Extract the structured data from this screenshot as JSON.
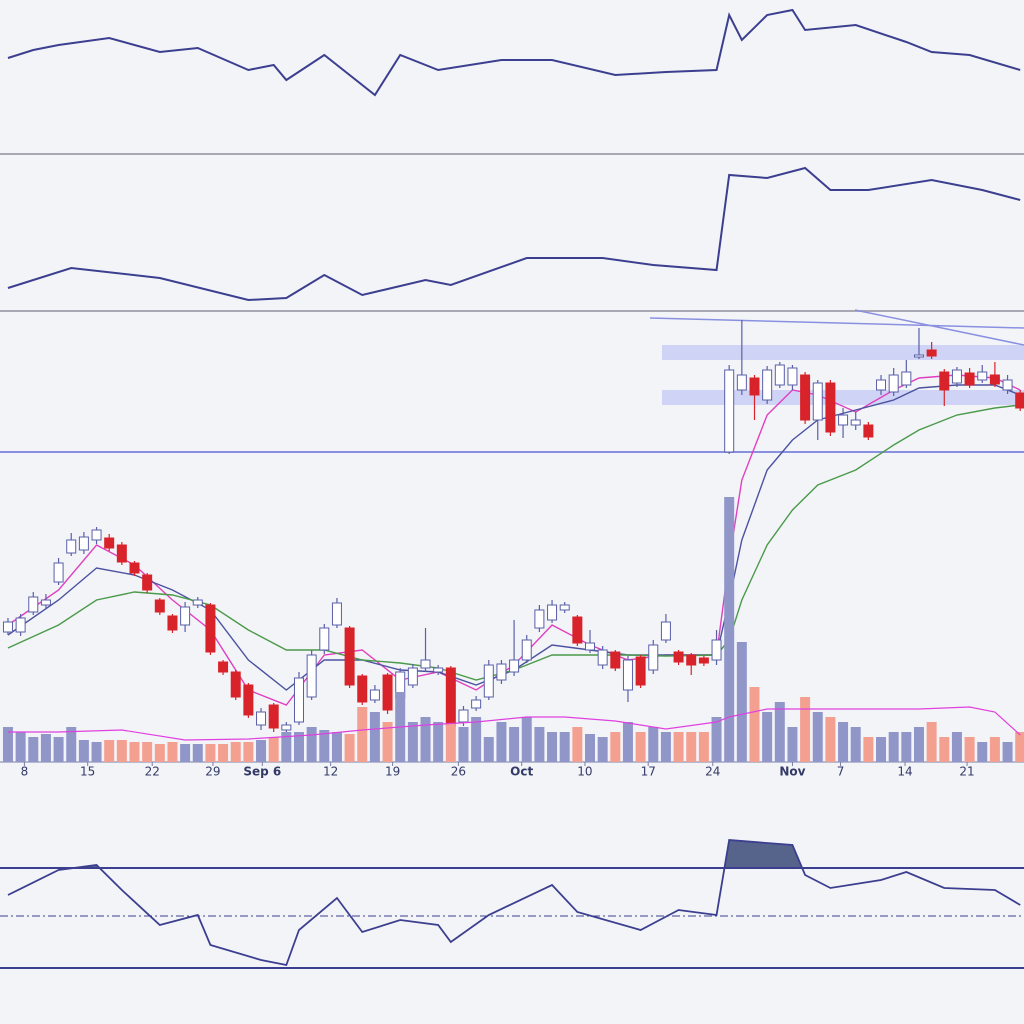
{
  "chart_data": [
    {
      "type": "line",
      "color": "#3c3f8f",
      "xlim": [
        -0.63,
        80.3
      ],
      "ylim": [
        0,
        150
      ],
      "x": [
        0,
        2,
        4,
        8,
        12,
        15,
        19,
        21,
        22,
        25,
        27,
        29,
        31,
        34,
        39,
        43,
        48,
        52,
        56,
        57,
        58,
        60,
        62,
        63,
        67,
        71,
        73,
        76,
        80
      ],
      "values": [
        92,
        100,
        105,
        112,
        98,
        102,
        80,
        85,
        70,
        95,
        75,
        55,
        95,
        80,
        90,
        90,
        75,
        78,
        80,
        135,
        110,
        135,
        140,
        120,
        125,
        108,
        98,
        95,
        80
      ]
    },
    {
      "type": "line",
      "color": "#3c3f8f",
      "xlim": [
        -0.63,
        80.3
      ],
      "ylim": [
        0,
        155
      ],
      "x": [
        0,
        5,
        12,
        19,
        22,
        25,
        28,
        33,
        35,
        41,
        47,
        51,
        56,
        57,
        60,
        63,
        65,
        68,
        73,
        77,
        80
      ],
      "values": [
        22,
        42,
        32,
        10,
        12,
        35,
        15,
        30,
        25,
        52,
        52,
        45,
        40,
        135,
        132,
        142,
        120,
        120,
        130,
        120,
        110
      ]
    },
    {
      "type": "candlestick",
      "xlim": [
        -0.63,
        80.3
      ],
      "ylim": [
        18,
        470
      ],
      "up_color": "#ffffff",
      "down_color": "#d8232a",
      "stroke": "#5a5fa8",
      "open": [
        148,
        148,
        168,
        175,
        198,
        227,
        230,
        240,
        242,
        235,
        217,
        205,
        180,
        164,
        155,
        175,
        175,
        118,
        108,
        95,
        55,
        75,
        50,
        58,
        83,
        130,
        155,
        152,
        104,
        80,
        105,
        82,
        95,
        112,
        108,
        112,
        58,
        72,
        83,
        100,
        108,
        120,
        152,
        160,
        170,
        163,
        130,
        115,
        128,
        90,
        123,
        110,
        140,
        128,
        125,
        122,
        120,
        328,
        390,
        402,
        380,
        395,
        395,
        405,
        360,
        397,
        355,
        355,
        355,
        390,
        388,
        395,
        423,
        430,
        408,
        397,
        407,
        400,
        405,
        390,
        387
      ],
      "high": [
        162,
        166,
        188,
        186,
        222,
        247,
        248,
        253,
        246,
        238,
        219,
        207,
        182,
        166,
        178,
        183,
        177,
        120,
        110,
        97,
        72,
        77,
        58,
        108,
        130,
        156,
        182,
        154,
        106,
        95,
        107,
        112,
        116,
        152,
        115,
        114,
        74,
        84,
        120,
        120,
        160,
        145,
        175,
        180,
        178,
        165,
        150,
        134,
        130,
        124,
        125,
        140,
        166,
        130,
        127,
        124,
        150,
        415,
        460,
        405,
        414,
        418,
        415,
        408,
        400,
        400,
        372,
        368,
        358,
        405,
        412,
        420,
        452,
        438,
        411,
        413,
        412,
        415,
        418,
        405,
        390
      ],
      "low": [
        145,
        144,
        165,
        172,
        195,
        224,
        226,
        236,
        229,
        215,
        204,
        187,
        165,
        147,
        148,
        172,
        125,
        105,
        80,
        62,
        50,
        48,
        47,
        55,
        80,
        126,
        152,
        92,
        75,
        77,
        66,
        78,
        92,
        108,
        105,
        52,
        54,
        69,
        80,
        96,
        104,
        117,
        148,
        157,
        167,
        134,
        127,
        111,
        109,
        78,
        92,
        106,
        137,
        115,
        105,
        114,
        115,
        326,
        385,
        360,
        376,
        392,
        390,
        356,
        340,
        344,
        342,
        350,
        340,
        385,
        384,
        392,
        421,
        421,
        374,
        393,
        392,
        397,
        393,
        386,
        369
      ],
      "close": [
        158,
        162,
        183,
        180,
        217,
        240,
        243,
        250,
        232,
        218,
        207,
        190,
        168,
        150,
        173,
        180,
        128,
        108,
        83,
        65,
        68,
        52,
        55,
        102,
        125,
        152,
        177,
        95,
        78,
        90,
        70,
        108,
        112,
        120,
        112,
        54,
        70,
        80,
        115,
        116,
        120,
        140,
        170,
        175,
        175,
        137,
        137,
        130,
        112,
        120,
        95,
        135,
        158,
        118,
        115,
        117,
        140,
        410,
        405,
        385,
        410,
        415,
        412,
        360,
        397,
        348,
        365,
        360,
        343,
        400,
        405,
        408,
        425,
        424,
        390,
        410,
        395,
        408,
        396,
        400,
        372
      ],
      "series": [
        {
          "color": "#e040c0",
          "x": [
            0,
            4,
            7,
            10,
            13,
            16,
            19,
            22,
            25,
            28,
            31,
            34,
            37,
            40,
            43,
            46,
            49,
            52,
            56,
            57,
            58,
            60,
            62,
            64,
            67,
            70,
            72,
            75,
            78,
            80
          ],
          "values": [
            155,
            190,
            235,
            215,
            180,
            150,
            90,
            75,
            125,
            130,
            100,
            108,
            90,
            115,
            155,
            135,
            120,
            125,
            125,
            220,
            300,
            365,
            390,
            385,
            368,
            390,
            402,
            405,
            402,
            390
          ]
        },
        {
          "color": "#4c52a0",
          "x": [
            0,
            4,
            7,
            10,
            13,
            16,
            19,
            22,
            25,
            28,
            31,
            34,
            37,
            40,
            43,
            46,
            49,
            52,
            56,
            57,
            58,
            60,
            62,
            64,
            67,
            70,
            72,
            75,
            78,
            80
          ],
          "values": [
            145,
            180,
            212,
            205,
            190,
            170,
            120,
            90,
            120,
            120,
            110,
            108,
            95,
            110,
            135,
            130,
            125,
            125,
            125,
            180,
            240,
            310,
            340,
            360,
            370,
            380,
            392,
            395,
            395,
            385
          ]
        },
        {
          "color": "#4a9a4a",
          "x": [
            0,
            4,
            7,
            10,
            13,
            16,
            19,
            22,
            25,
            28,
            31,
            34,
            37,
            40,
            43,
            46,
            49,
            52,
            56,
            57,
            58,
            60,
            62,
            64,
            67,
            70,
            72,
            75,
            78,
            80
          ],
          "values": [
            132,
            155,
            180,
            188,
            185,
            175,
            150,
            130,
            130,
            120,
            117,
            112,
            100,
            110,
            125,
            125,
            125,
            124,
            125,
            140,
            180,
            235,
            270,
            295,
            310,
            335,
            350,
            365,
            372,
            375
          ]
        }
      ],
      "xticks": [
        {
          "value": 1.3,
          "label": "8"
        },
        {
          "value": 6.3,
          "label": "15"
        },
        {
          "value": 11.4,
          "label": "22"
        },
        {
          "value": 16.2,
          "label": "29"
        },
        {
          "value": 20.1,
          "label": "Sep 6"
        },
        {
          "value": 25.5,
          "label": "12"
        },
        {
          "value": 30.4,
          "label": "19"
        },
        {
          "value": 35.6,
          "label": "26"
        },
        {
          "value": 40.6,
          "label": "Oct"
        },
        {
          "value": 45.6,
          "label": "10"
        },
        {
          "value": 50.6,
          "label": "17"
        },
        {
          "value": 55.7,
          "label": "24"
        },
        {
          "value": 62,
          "label": "Nov"
        },
        {
          "value": 65.8,
          "label": "7"
        },
        {
          "value": 70.9,
          "label": "14"
        },
        {
          "value": 75.8,
          "label": "21"
        }
      ]
    },
    {
      "type": "bar",
      "xlim": [
        -0.63,
        80.3
      ],
      "ylim": [
        0,
        270
      ],
      "up_color": "#9097c8",
      "down_color": "#f4a090",
      "values": [
        35,
        30,
        25,
        28,
        25,
        35,
        22,
        20,
        22,
        22,
        20,
        20,
        18,
        20,
        18,
        18,
        18,
        18,
        20,
        20,
        22,
        25,
        30,
        30,
        35,
        32,
        30,
        28,
        55,
        50,
        40,
        70,
        40,
        45,
        40,
        38,
        35,
        45,
        25,
        40,
        35,
        45,
        35,
        30,
        30,
        35,
        28,
        25,
        30,
        40,
        30,
        35,
        30,
        30,
        30,
        30,
        45,
        265,
        120,
        75,
        50,
        60,
        35,
        65,
        50,
        45,
        40,
        35,
        25,
        25,
        30,
        30,
        35,
        40,
        25,
        30,
        25,
        20,
        25,
        20,
        30
      ],
      "series": [
        {
          "color": "#e040e0",
          "x": [
            0,
            4,
            9,
            14,
            19,
            24,
            28,
            33,
            37,
            41,
            44,
            48,
            52,
            56,
            57,
            60,
            66,
            72,
            76,
            78,
            80
          ],
          "values": [
            30,
            30,
            32,
            22,
            23,
            27,
            32,
            37,
            40,
            45,
            45,
            41,
            33,
            40,
            45,
            53,
            53,
            53,
            55,
            50,
            27
          ]
        }
      ]
    },
    {
      "type": "oscillator",
      "color": "#3c3f8f",
      "fill": "#56648c",
      "xlim": [
        -0.63,
        80.3
      ],
      "ylim": [
        0,
        155
      ],
      "levels": [
        107,
        59,
        7
      ],
      "x": [
        0,
        4,
        7,
        9,
        12,
        15,
        16,
        20,
        22,
        23,
        26,
        28,
        31,
        34,
        35,
        38,
        43,
        45,
        50,
        53,
        56,
        57,
        62,
        63,
        65,
        69,
        71,
        74,
        78,
        80
      ],
      "values": [
        80,
        105,
        110,
        85,
        50,
        60,
        30,
        15,
        10,
        45,
        77,
        43,
        55,
        50,
        33,
        60,
        90,
        63,
        45,
        65,
        60,
        135,
        130,
        100,
        87,
        95,
        103,
        87,
        85,
        70
      ]
    }
  ]
}
